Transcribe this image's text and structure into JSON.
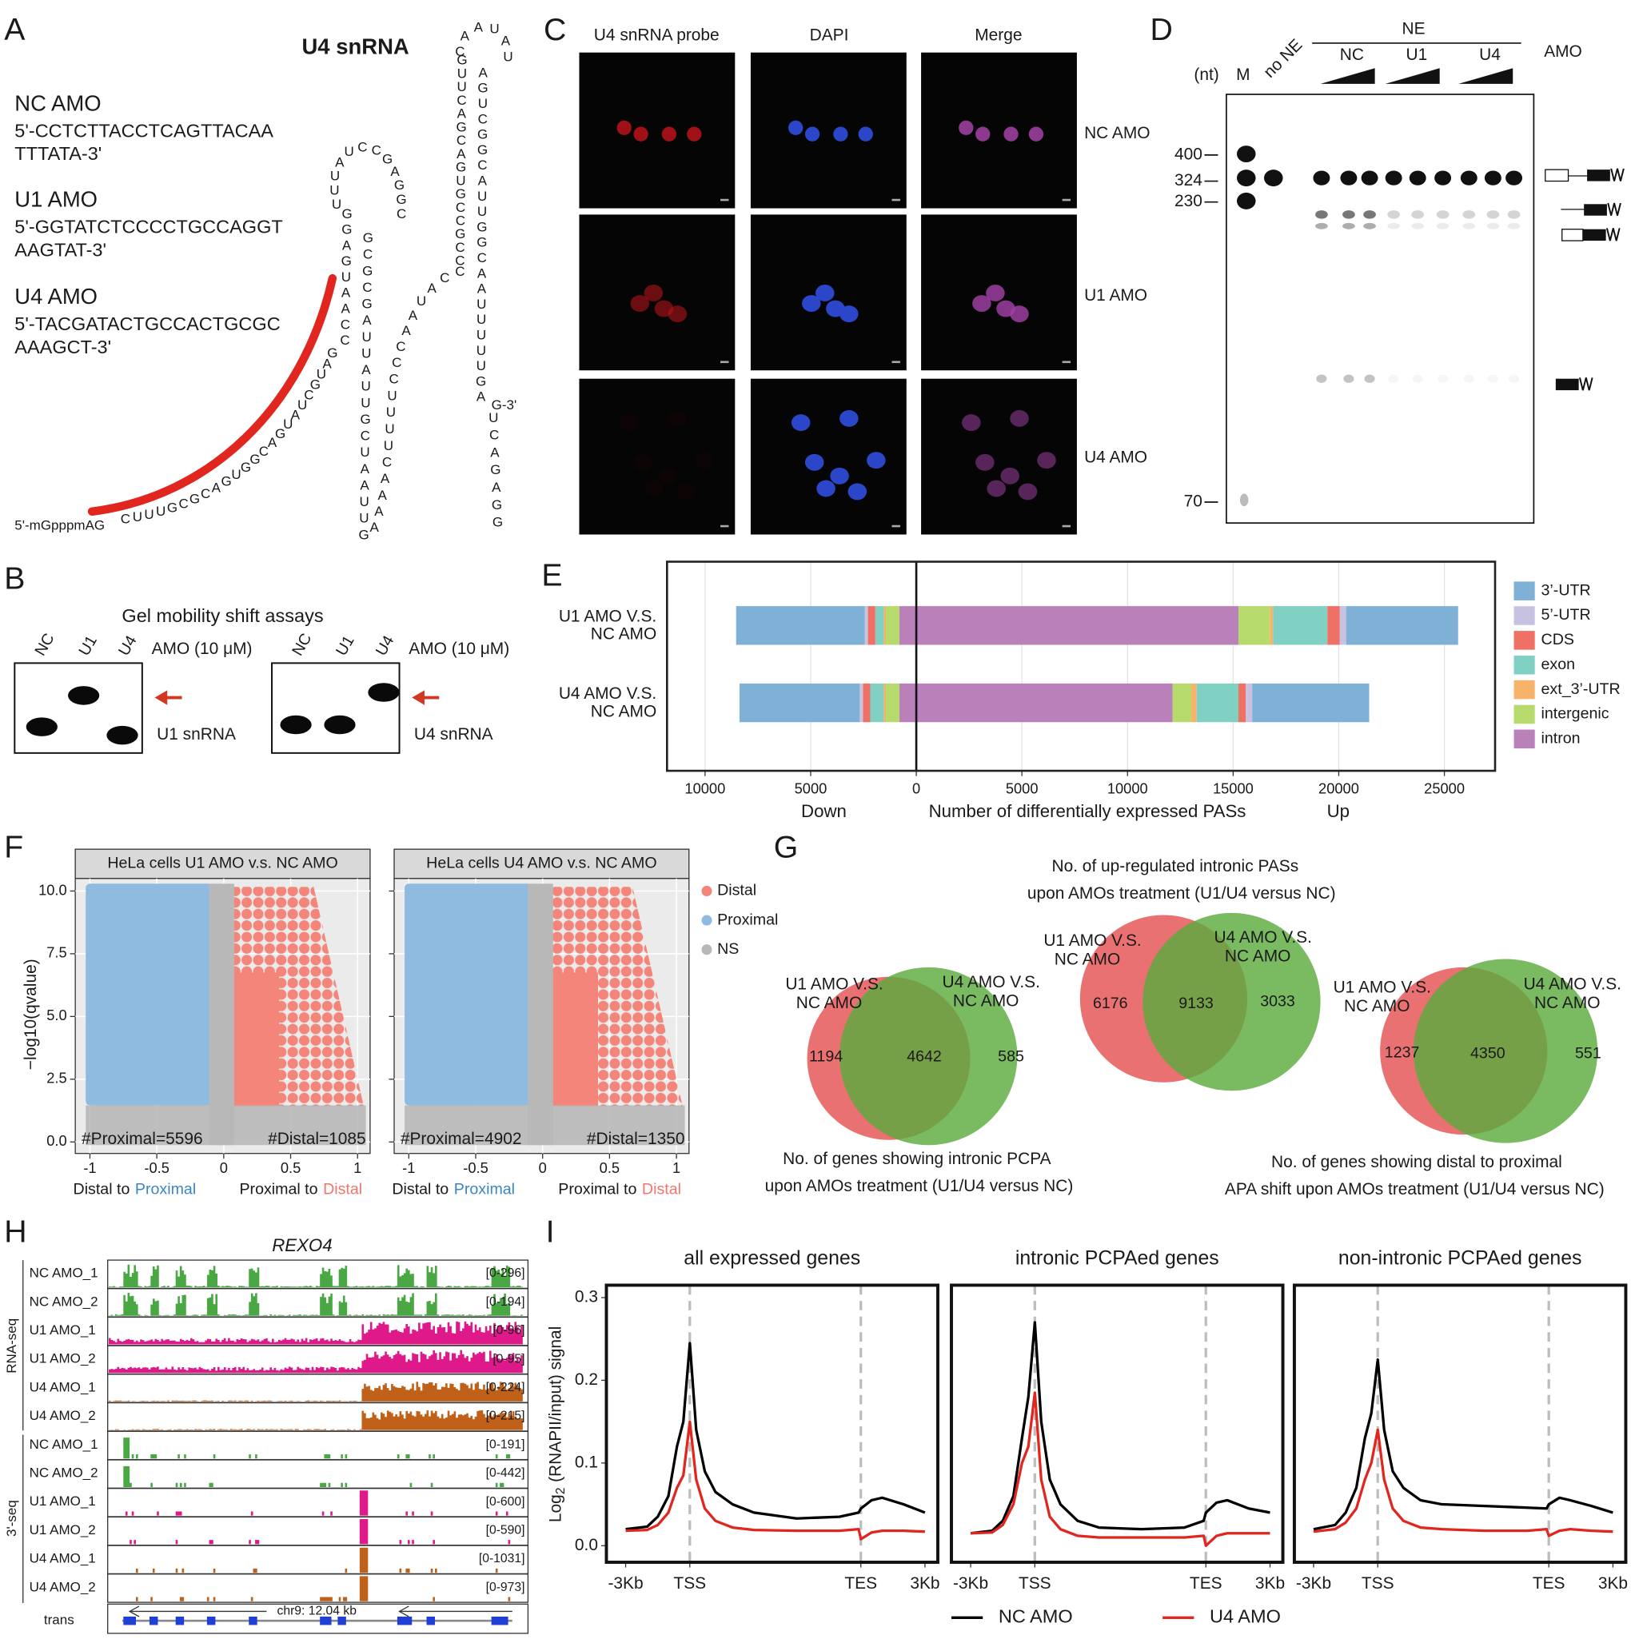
{
  "panel_labels": {
    "a": "A",
    "b": "B",
    "c": "C",
    "d": "D",
    "e": "E",
    "f": "F",
    "g": "G",
    "h": "H",
    "i": "I"
  },
  "panel_a": {
    "title": "U4 snRNA",
    "amos": [
      {
        "name": "NC AMO",
        "sequence": [
          "5'-CCTCTTACCTCAGTTACAA",
          "TTTATA-3'"
        ],
        "color": "#1a1a1a"
      },
      {
        "name": "U1 AMO",
        "sequence": [
          "5'-GGTATCTCCCCTGCCAGGT",
          "AAGTAT-3'"
        ],
        "color": "#1a1a1a"
      },
      {
        "name": "U4 AMO",
        "sequence": [
          "5'-TACGATACTGCCACTGCGC",
          "AAAGCT-3'"
        ],
        "color": "#e0261f"
      }
    ],
    "cap": "5'-mGpppmAG",
    "rna_segments": [
      "CUUUGCGCAGUGGCAGUAUCGUAG",
      "CCAAUGAGG",
      "UUUAUCCGAGGC",
      "GCGCGAUUAUUGCUAAUUG",
      "AAAACUUUUCCCAAUACC",
      "CCGCCGUGACGACUUG",
      "CAAUAU",
      "AGUCGGCAUUGGCAAUUUUUGA",
      "UCAGAGG"
    ],
    "end": "G-3'"
  },
  "panel_b": {
    "title": "Gel mobility shift assays",
    "gels": [
      {
        "lanes": [
          "NC",
          "U1",
          "U4"
        ],
        "condition": "AMO (10 μM)",
        "probe": "U1 snRNA"
      },
      {
        "lanes": [
          "NC",
          "U1",
          "U4"
        ],
        "condition": "AMO (10 μM)",
        "probe": "U4 snRNA"
      }
    ]
  },
  "panel_c": {
    "columns": [
      "U4 snRNA probe",
      "DAPI",
      "Merge"
    ],
    "rows": [
      "NC AMO",
      "U1 AMO",
      "U4 AMO"
    ]
  },
  "panel_d": {
    "unit": "(nt)",
    "lanes": [
      "M",
      "no NE"
    ],
    "group": "NE",
    "subgroups": [
      "NC",
      "U1",
      "U4"
    ],
    "treatment": "AMO",
    "markers": [
      400,
      324,
      230,
      70
    ]
  },
  "panel_f": {
    "plots": [
      {
        "title": "HeLa cells U1 AMO v.s. NC AMO",
        "annotations": [
          "#Proximal=5596",
          "#Distal=1085"
        ]
      },
      {
        "title": "HeLa cells U4 AMO v.s. NC AMO",
        "annotations": [
          "#Proximal=4902",
          "#Distal=1350"
        ]
      }
    ],
    "ylabel": "−log10(qvalue)",
    "yticks": [
      "0.0",
      "2.5",
      "5.0",
      "7.5",
      "10.0"
    ],
    "xticks": [
      "-1",
      "-0.5",
      "0",
      "0.5",
      "1"
    ],
    "xlabels": [
      {
        "text": "Distal to",
        "highlight": "Proximal",
        "color": "#3a86c4"
      },
      {
        "text": "Proximal to",
        "highlight": "Distal",
        "color": "#f0766b"
      }
    ],
    "legend": [
      {
        "name": "Distal",
        "color": "#f4857a"
      },
      {
        "name": "Proximal",
        "color": "#8fbbe0"
      },
      {
        "name": "NS",
        "color": "#b8b8b8"
      }
    ]
  },
  "panel_g": {
    "title": [
      "No. of up-regulated intronic PASs",
      "upon AMOs treatment (U1/U4 versus NC)"
    ],
    "venns": [
      {
        "left_label": [
          "U1 AMO V.S.",
          "NC AMO"
        ],
        "right_label": [
          "U4 AMO V.S.",
          "NC AMO"
        ],
        "left_only": 1194,
        "both": 4642,
        "right_only": 585,
        "caption": [
          "No. of genes showing intronic PCPA",
          "upon AMOs treatment (U1/U4 versus NC)"
        ]
      },
      {
        "left_label": [
          "U1 AMO V.S.",
          "NC AMO"
        ],
        "right_label": [
          "U4 AMO V.S.",
          "NC AMO"
        ],
        "left_only": 6176,
        "both": 9133,
        "right_only": 3033
      },
      {
        "left_label": [
          "U1 AMO V.S.",
          "NC AMO"
        ],
        "right_label": [
          "U4 AMO V.S.",
          "NC AMO"
        ],
        "left_only": 1237,
        "both": 4350,
        "right_only": 551,
        "caption": [
          "No. of genes showing distal to proximal",
          "APA shift upon AMOs treatment (U1/U4 versus NC)"
        ]
      }
    ]
  },
  "panel_h": {
    "gene": "REXO4",
    "groups": [
      "RNA-seq",
      "3'-seq"
    ],
    "tracks": [
      {
        "name": "NC AMO_1",
        "range": "[0-296]"
      },
      {
        "name": "NC AMO_2",
        "range": "[0-194]"
      },
      {
        "name": "U1 AMO_1",
        "range": "[0-96]"
      },
      {
        "name": "U1 AMO_2",
        "range": "[0-95]"
      },
      {
        "name": "U4 AMO_1",
        "range": "[0-224]"
      },
      {
        "name": "U4 AMO_2",
        "range": "[0-215]"
      },
      {
        "name": "NC AMO_1",
        "range": "[0-191]"
      },
      {
        "name": "NC AMO_2",
        "range": "[0-442]"
      },
      {
        "name": "U1 AMO_1",
        "range": "[0-600]"
      },
      {
        "name": "U1 AMO_2",
        "range": "[0-590]"
      },
      {
        "name": "U4 AMO_1",
        "range": "[0-1031]"
      },
      {
        "name": "U4 AMO_2",
        "range": "[0-973]"
      }
    ],
    "annotation_label": "trans",
    "locus": "chr9: 12.04 kb"
  },
  "chart_data": [
    {
      "type": "diverging_bar",
      "categories": [
        [
          "U1 AMO V.S.",
          "NC AMO"
        ],
        [
          "U4 AMO V.S.",
          "NC AMO"
        ]
      ],
      "series": [
        {
          "name": "3’-UTR",
          "color": "#7fb0d5",
          "down": [
            6090,
            5690
          ],
          "up": [
            5300,
            5540
          ]
        },
        {
          "name": "5’-UTR",
          "color": "#c7c2e2",
          "down": [
            150,
            150
          ],
          "up": [
            300,
            300
          ]
        },
        {
          "name": "CDS",
          "color": "#ef7165",
          "down": [
            350,
            350
          ],
          "up": [
            590,
            350
          ]
        },
        {
          "name": "exon",
          "color": "#80d1c3",
          "down": [
            400,
            640
          ],
          "up": [
            2570,
            1980
          ]
        },
        {
          "name": "ext_3’-UTR",
          "color": "#f7b36a",
          "down": [
            100,
            100
          ],
          "up": [
            150,
            250
          ]
        },
        {
          "name": "intergenic",
          "color": "#b6da6c",
          "down": [
            640,
            640
          ],
          "up": [
            1490,
            890
          ]
        },
        {
          "name": "intron",
          "color": "#b980b9",
          "down": [
            800,
            800
          ],
          "up": [
            15250,
            12130
          ]
        }
      ],
      "xlim": [
        -11800,
        27400
      ],
      "xticks": [
        {
          "value": -10000,
          "label": "10000"
        },
        {
          "value": -5000,
          "label": "5000"
        },
        0,
        5000,
        10000,
        15000,
        20000,
        25000
      ],
      "xlabel": "Number of differentially expressed PASs",
      "down_label": "Down",
      "up_label": "Up",
      "grid": true
    },
    {
      "type": "line",
      "title": "all expressed genes",
      "x": [
        -3,
        -2,
        -1.5,
        -1,
        -0.6,
        -0.3,
        0,
        0.3,
        0.7,
        1.2,
        2,
        3,
        5,
        7,
        7.9,
        8,
        8.5,
        9,
        10,
        11
      ],
      "series": [
        {
          "color": "#000000",
          "values": [
            0.02,
            0.023,
            0.035,
            0.06,
            0.12,
            0.15,
            0.245,
            0.14,
            0.09,
            0.065,
            0.05,
            0.04,
            0.033,
            0.035,
            0.04,
            0.045,
            0.055,
            0.058,
            0.05,
            0.04
          ]
        },
        {
          "color": "#e0261f",
          "values": [
            0.018,
            0.019,
            0.025,
            0.04,
            0.07,
            0.085,
            0.15,
            0.08,
            0.045,
            0.03,
            0.022,
            0.019,
            0.018,
            0.018,
            0.02,
            0.008,
            0.016,
            0.018,
            0.018,
            0.017
          ]
        }
      ],
      "xlim": [
        -3.9,
        11.6
      ],
      "xticks": [
        {
          "value": -3,
          "label": "-3Kb"
        },
        {
          "value": 0,
          "label": "TSS"
        },
        {
          "value": 8,
          "label": "TES"
        },
        {
          "value": 11,
          "label": "3Kb"
        }
      ],
      "ylim": [
        -0.02,
        0.315
      ],
      "yticks": [
        {
          "value": 0,
          "label": "0.0"
        },
        0.1,
        0.2,
        0.3
      ],
      "ylabel": [
        "Log",
        "2",
        "(RNAPII/input) signal"
      ]
    },
    {
      "type": "line",
      "title": "intronic PCPAed genes",
      "x": [
        -3,
        -2,
        -1.5,
        -1,
        -0.6,
        -0.3,
        0,
        0.3,
        0.7,
        1.2,
        2,
        3,
        5,
        7,
        7.9,
        8,
        8.5,
        9,
        10,
        11
      ],
      "series": [
        {
          "name": "NC AMO",
          "color": "#000000",
          "values": [
            0.015,
            0.018,
            0.03,
            0.06,
            0.13,
            0.18,
            0.27,
            0.15,
            0.08,
            0.05,
            0.03,
            0.022,
            0.02,
            0.022,
            0.03,
            0.04,
            0.052,
            0.055,
            0.045,
            0.04
          ]
        },
        {
          "name": "U4 AMO",
          "color": "#e0261f",
          "values": [
            0.015,
            0.016,
            0.025,
            0.05,
            0.1,
            0.12,
            0.185,
            0.08,
            0.035,
            0.02,
            0.012,
            0.01,
            0.01,
            0.01,
            0.012,
            0.0,
            0.012,
            0.015,
            0.015,
            0.015
          ]
        }
      ],
      "xlim": [
        -3.9,
        11.6
      ],
      "xticks": [
        {
          "value": -3,
          "label": "-3Kb"
        },
        {
          "value": 0,
          "label": "TSS"
        },
        {
          "value": 8,
          "label": "TES"
        },
        {
          "value": 11,
          "label": "3Kb"
        }
      ],
      "ylim": [
        -0.02,
        0.315
      ],
      "legend": "bottom"
    },
    {
      "type": "line",
      "title": "non-intronic PCPAed genes",
      "x": [
        -3,
        -2,
        -1.5,
        -1,
        -0.6,
        -0.3,
        0,
        0.3,
        0.7,
        1.2,
        2,
        3,
        5,
        7,
        7.9,
        8,
        8.5,
        9,
        10,
        11
      ],
      "series": [
        {
          "color": "#000000",
          "values": [
            0.02,
            0.025,
            0.04,
            0.07,
            0.13,
            0.16,
            0.225,
            0.14,
            0.09,
            0.07,
            0.055,
            0.05,
            0.048,
            0.046,
            0.045,
            0.05,
            0.058,
            0.055,
            0.048,
            0.04
          ]
        },
        {
          "color": "#e0261f",
          "values": [
            0.017,
            0.02,
            0.028,
            0.045,
            0.08,
            0.1,
            0.14,
            0.08,
            0.045,
            0.03,
            0.022,
            0.02,
            0.018,
            0.018,
            0.02,
            0.012,
            0.018,
            0.02,
            0.018,
            0.017
          ]
        }
      ],
      "xlim": [
        -3.9,
        11.6
      ],
      "xticks": [
        {
          "value": -3,
          "label": "-3Kb"
        },
        {
          "value": 0,
          "label": "TSS"
        },
        {
          "value": 8,
          "label": "TES"
        },
        {
          "value": 11,
          "label": "3Kb"
        }
      ],
      "ylim": [
        -0.02,
        0.315
      ]
    }
  ]
}
